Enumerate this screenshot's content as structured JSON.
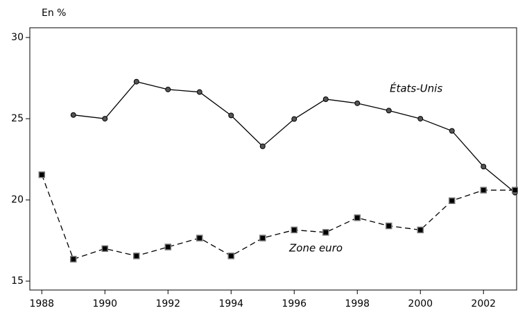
{
  "chart_data": {
    "type": "line",
    "y_unit_label": "En %",
    "x": [
      1988,
      1989,
      1990,
      1991,
      1992,
      1993,
      1994,
      1995,
      1996,
      1997,
      1998,
      1999,
      2000,
      2001,
      2002,
      2003
    ],
    "series": [
      {
        "name": "États-Unis",
        "color": "#000000",
        "marker": "circle",
        "dashed": false,
        "values": [
          null,
          25.23,
          25.0,
          27.28,
          26.8,
          26.64,
          25.2,
          23.3,
          24.98,
          26.2,
          25.95,
          25.5,
          25.0,
          24.25,
          22.05,
          20.45
        ]
      },
      {
        "name": "Zone euro",
        "color": "#000000",
        "marker": "square",
        "dashed": true,
        "values": [
          21.55,
          16.35,
          17.0,
          16.55,
          17.1,
          17.65,
          16.55,
          17.65,
          18.15,
          18.0,
          18.9,
          18.4,
          18.15,
          19.95,
          20.6,
          20.6
        ]
      }
    ],
    "xlim": [
      1987.62,
      2003.05
    ],
    "xticks": [
      1988,
      1990,
      1992,
      1994,
      1996,
      1998,
      2000,
      2002
    ],
    "ylim": [
      14.45,
      30.6
    ],
    "yticks": [
      15,
      20,
      25,
      30
    ],
    "grid": false
  }
}
